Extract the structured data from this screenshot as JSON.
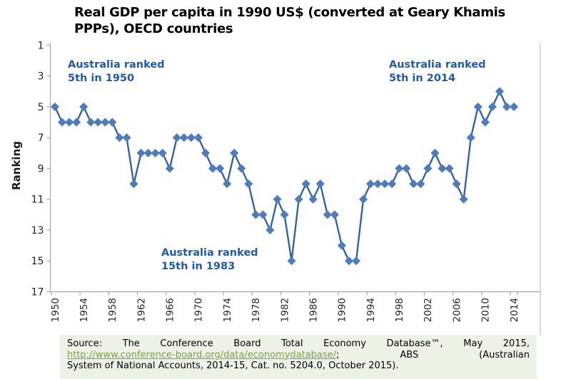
{
  "header": {
    "line1": "Real GDP per capita in 1990 US$ (converted at Geary Khamis",
    "line2": "PPPs), OECD countries"
  },
  "chart_data": {
    "type": "line",
    "title": "Real GDP per capita in 1990 US$ (converted at Geary Khamis PPPs), OECD countries",
    "xlabel": "",
    "ylabel": "Ranking",
    "x": [
      1950,
      1951,
      1952,
      1953,
      1954,
      1955,
      1956,
      1957,
      1958,
      1959,
      1960,
      1961,
      1962,
      1963,
      1964,
      1965,
      1966,
      1967,
      1968,
      1969,
      1970,
      1971,
      1972,
      1973,
      1974,
      1975,
      1976,
      1977,
      1978,
      1979,
      1980,
      1981,
      1982,
      1983,
      1984,
      1985,
      1986,
      1987,
      1988,
      1989,
      1990,
      1991,
      1992,
      1993,
      1994,
      1995,
      1996,
      1997,
      1998,
      1999,
      2000,
      2001,
      2002,
      2003,
      2004,
      2005,
      2006,
      2007,
      2008,
      2009,
      2010,
      2011,
      2012,
      2013,
      2014
    ],
    "values": [
      5,
      6,
      6,
      6,
      5,
      6,
      6,
      6,
      6,
      7,
      7,
      10,
      8,
      8,
      8,
      8,
      9,
      7,
      7,
      7,
      7,
      8,
      9,
      9,
      10,
      8,
      9,
      10,
      12,
      12,
      13,
      11,
      12,
      15,
      11,
      10,
      11,
      10,
      12,
      12,
      14,
      15,
      15,
      11,
      10,
      10,
      10,
      10,
      9,
      9,
      10,
      10,
      9,
      8,
      9,
      9,
      10,
      11,
      7,
      5,
      6,
      5,
      4,
      5,
      5
    ],
    "y_ticks": [
      1,
      3,
      5,
      7,
      9,
      11,
      13,
      15,
      17
    ],
    "ylim": [
      1,
      17
    ],
    "y_reversed": true,
    "x_ticks": [
      1950,
      1954,
      1958,
      1962,
      1966,
      1970,
      1974,
      1978,
      1982,
      1986,
      1990,
      1994,
      1998,
      2002,
      2006,
      2010,
      2014
    ],
    "grid": false,
    "legend": "none",
    "marker": "diamond",
    "line_color": "#35639E",
    "marker_color": "#4C7CBC",
    "axis_color": "#A6A6A6",
    "border_color": "#C9C9C9",
    "annotation_color": "#1F5BA9",
    "annotations": [
      {
        "line1": "Australia ranked",
        "line2": "5th in 1950",
        "year": 1950,
        "rank": 5
      },
      {
        "line1": "Australia ranked",
        "line2": "5th in 2014",
        "year": 2014,
        "rank": 5
      },
      {
        "line1": "Australia ranked",
        "line2": "15th in 1983",
        "year": 1983,
        "rank": 15
      }
    ]
  },
  "source": {
    "line1": "Source: The Conference Board Total Economy Database™, May 2015,",
    "link_text": "http://www.conference-board.org/data/economydatabase/",
    "line2_rest": "; ABS (Australian",
    "line3": "System of National Accounts, 2014-15, Cat. no. 5204.0, October 2015).",
    "link_color": "#7E9D3F",
    "background": "#EDF2E7"
  }
}
